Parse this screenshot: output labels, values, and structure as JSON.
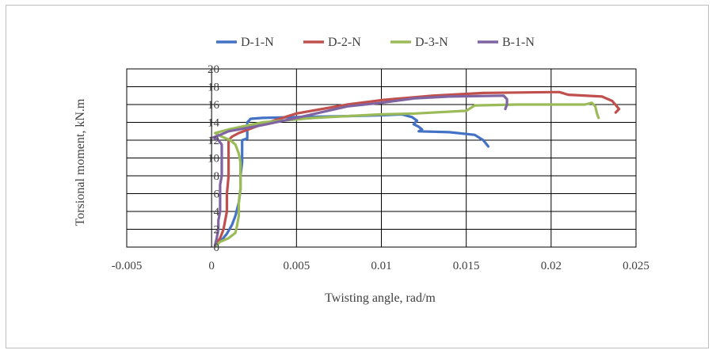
{
  "chart_data": {
    "type": "line",
    "title": "",
    "xlabel": "Twisting angle, rad/m",
    "ylabel": "Torsional moment, kN.m",
    "xlim": [
      -0.005,
      0.025
    ],
    "ylim": [
      0,
      20
    ],
    "x_ticks": [
      "-0.005",
      "0",
      "0.005",
      "0.01",
      "0.015",
      "0.02",
      "0.025"
    ],
    "y_ticks": [
      "0",
      "2",
      "4",
      "6",
      "8",
      "10",
      "12",
      "14",
      "16",
      "18",
      "20"
    ],
    "x_tick_values": [
      -0.005,
      0,
      0.005,
      0.01,
      0.015,
      0.02,
      0.025
    ],
    "y_tick_values": [
      0,
      2,
      4,
      6,
      8,
      10,
      12,
      14,
      16,
      18,
      20
    ],
    "grid": true,
    "legend_position": "top",
    "series": [
      {
        "name": "D-1-N",
        "color": "#4472C4",
        "points": [
          [
            0.0002,
            0.2
          ],
          [
            0.0006,
            0.8
          ],
          [
            0.0009,
            1.5
          ],
          [
            0.0012,
            2.5
          ],
          [
            0.0014,
            3.5
          ],
          [
            0.0016,
            5
          ],
          [
            0.0017,
            6.5
          ],
          [
            0.0017,
            8
          ],
          [
            0.0018,
            9.5
          ],
          [
            0.0018,
            11
          ],
          [
            0.0018,
            12
          ],
          [
            0.0021,
            12.2
          ],
          [
            0.0021,
            13
          ],
          [
            0.0021,
            14
          ],
          [
            0.0023,
            14.4
          ],
          [
            0.003,
            14.5
          ],
          [
            0.005,
            14.6
          ],
          [
            0.008,
            14.7
          ],
          [
            0.01,
            14.8
          ],
          [
            0.0112,
            14.9
          ],
          [
            0.0118,
            14.6
          ],
          [
            0.0121,
            14.2
          ],
          [
            0.0119,
            13.8
          ],
          [
            0.0122,
            13.5
          ],
          [
            0.0124,
            13.2
          ],
          [
            0.0122,
            13.0
          ],
          [
            0.014,
            12.9
          ],
          [
            0.0155,
            12.6
          ],
          [
            0.016,
            12.0
          ],
          [
            0.0163,
            11.3
          ]
        ]
      },
      {
        "name": "D-2-N",
        "color": "#C0504D",
        "points": [
          [
            0.0002,
            0.2
          ],
          [
            0.0005,
            1
          ],
          [
            0.0007,
            2
          ],
          [
            0.0008,
            3
          ],
          [
            0.0009,
            4
          ],
          [
            0.0009,
            6
          ],
          [
            0.001,
            8
          ],
          [
            0.001,
            10
          ],
          [
            0.001,
            12
          ],
          [
            0.0012,
            12.4
          ],
          [
            0.0016,
            12.8
          ],
          [
            0.003,
            13.8
          ],
          [
            0.005,
            15.0
          ],
          [
            0.008,
            16.0
          ],
          [
            0.01,
            16.5
          ],
          [
            0.013,
            17.0
          ],
          [
            0.016,
            17.3
          ],
          [
            0.02,
            17.4
          ],
          [
            0.0205,
            17.4
          ],
          [
            0.021,
            17.1
          ],
          [
            0.023,
            16.9
          ],
          [
            0.0236,
            16.4
          ],
          [
            0.024,
            15.5
          ],
          [
            0.0238,
            15.1
          ]
        ]
      },
      {
        "name": "D-3-N",
        "color": "#9BBB59",
        "points": [
          [
            0.0003,
            0.2
          ],
          [
            0.0005,
            0.6
          ],
          [
            0.001,
            1.0
          ],
          [
            0.0014,
            1.6
          ],
          [
            0.0015,
            2.4
          ],
          [
            0.0016,
            3.5
          ],
          [
            0.0016,
            5
          ],
          [
            0.0017,
            6.5
          ],
          [
            0.0017,
            8
          ],
          [
            0.0017,
            9.5
          ],
          [
            0.0016,
            10.5
          ],
          [
            0.0014,
            11.5
          ],
          [
            0.0011,
            12.0
          ],
          [
            0.0006,
            12.4
          ],
          [
            0.0002,
            12.8
          ],
          [
            0.001,
            13.2
          ],
          [
            0.002,
            13.6
          ],
          [
            0.003,
            14.0
          ],
          [
            0.006,
            14.5
          ],
          [
            0.01,
            14.9
          ],
          [
            0.012,
            15.0
          ],
          [
            0.015,
            15.3
          ],
          [
            0.0155,
            15.9
          ],
          [
            0.018,
            16.0
          ],
          [
            0.022,
            16.0
          ],
          [
            0.0224,
            16.2
          ],
          [
            0.0226,
            15.8
          ],
          [
            0.0227,
            15.0
          ],
          [
            0.0228,
            14.5
          ]
        ]
      },
      {
        "name": "B-1-N",
        "color": "#8064A2",
        "points": [
          [
            0.0002,
            0.2
          ],
          [
            0.0003,
            1
          ],
          [
            0.0004,
            2
          ],
          [
            0.0004,
            3
          ],
          [
            0.0005,
            4
          ],
          [
            0.0005,
            5
          ],
          [
            0.0005,
            6
          ],
          [
            0.0005,
            7
          ],
          [
            0.0006,
            8
          ],
          [
            0.0006,
            10
          ],
          [
            0.0006,
            11.5
          ],
          [
            0.0004,
            12.0
          ],
          [
            0.0001,
            12.3
          ],
          [
            0.0005,
            12.6
          ],
          [
            0.001,
            13.0
          ],
          [
            0.003,
            13.7
          ],
          [
            0.005,
            14.5
          ],
          [
            0.008,
            15.8
          ],
          [
            0.01,
            16.2
          ],
          [
            0.012,
            16.7
          ],
          [
            0.014,
            16.9
          ],
          [
            0.0172,
            17.0
          ],
          [
            0.0174,
            16.6
          ],
          [
            0.0174,
            16.0
          ],
          [
            0.0173,
            15.5
          ]
        ]
      }
    ]
  }
}
